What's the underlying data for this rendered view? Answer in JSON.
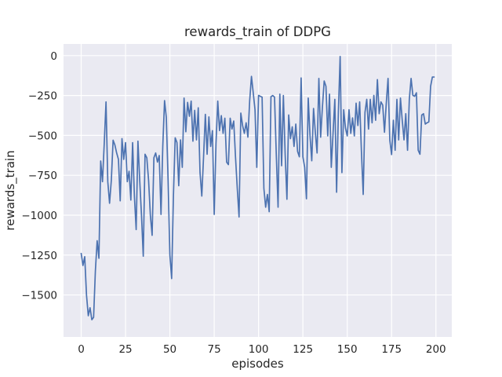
{
  "chart_data": {
    "type": "line",
    "title": "rewards_train of DDPG",
    "xlabel": "episodes",
    "ylabel": "rewards_train",
    "x_ticks": [
      0,
      25,
      50,
      75,
      100,
      125,
      150,
      175,
      200
    ],
    "y_ticks": [
      0,
      -250,
      -500,
      -750,
      -1000,
      -1250,
      -1500
    ],
    "xlim": [
      -9.95,
      208.95
    ],
    "ylim": [
      -1763,
      73
    ],
    "grid": true,
    "legend_position": "none",
    "colors": {
      "axes_background": "#eaeaf2",
      "figure_background": "#ffffff",
      "gridline": "#ffffff",
      "text": "#262626",
      "line": "#4c72b0"
    },
    "series": [
      {
        "name": "rewards_train",
        "color": "#4c72b0",
        "x_start": 0,
        "x_step": 1,
        "values": [
          -1240,
          -1315,
          -1260,
          -1500,
          -1630,
          -1580,
          -1655,
          -1640,
          -1350,
          -1160,
          -1270,
          -660,
          -790,
          -550,
          -290,
          -790,
          -925,
          -780,
          -530,
          -560,
          -610,
          -650,
          -910,
          -520,
          -650,
          -545,
          -790,
          -725,
          -905,
          -545,
          -880,
          -1090,
          -536,
          -782,
          -1000,
          -1257,
          -618,
          -640,
          -782,
          -1000,
          -1126,
          -640,
          -610,
          -667,
          -626,
          -995,
          -569,
          -282,
          -388,
          -782,
          -1250,
          -1397,
          -880,
          -515,
          -545,
          -815,
          -528,
          -700,
          -266,
          -477,
          -293,
          -380,
          -285,
          -536,
          -343,
          -528,
          -327,
          -733,
          -880,
          -634,
          -368,
          -618,
          -384,
          -569,
          -470,
          -995,
          -552,
          -285,
          -470,
          -376,
          -487,
          -392,
          -667,
          -683,
          -392,
          -460,
          -410,
          -634,
          -831,
          -1011,
          -360,
          -438,
          -487,
          -421,
          -511,
          -282,
          -130,
          -233,
          -339,
          -700,
          -249,
          -255,
          -260,
          -831,
          -950,
          -870,
          -978,
          -257,
          -250,
          -260,
          -620,
          -950,
          -241,
          -690,
          -250,
          -620,
          -900,
          -372,
          -520,
          -446,
          -569,
          -429,
          -600,
          -634,
          -140,
          -634,
          -700,
          -897,
          -266,
          -500,
          -659,
          -331,
          -480,
          -610,
          -143,
          -511,
          -323,
          -159,
          -192,
          -503,
          -241,
          -700,
          -487,
          -274,
          -856,
          -356,
          -5,
          -733,
          -339,
          -454,
          -503,
          -339,
          -487,
          -390,
          -503,
          -298,
          -438,
          -290,
          -602,
          -870,
          -356,
          -274,
          -460,
          -274,
          -421,
          -249,
          -405,
          -150,
          -364,
          -290,
          -310,
          -480,
          -300,
          -143,
          -530,
          -620,
          -405,
          -593,
          -274,
          -528,
          -266,
          -405,
          -528,
          -364,
          -593,
          -274,
          -143,
          -249,
          -255,
          -233,
          -593,
          -618,
          -372,
          -364,
          -429,
          -421,
          -415,
          -192,
          -134,
          -134
        ]
      }
    ]
  }
}
